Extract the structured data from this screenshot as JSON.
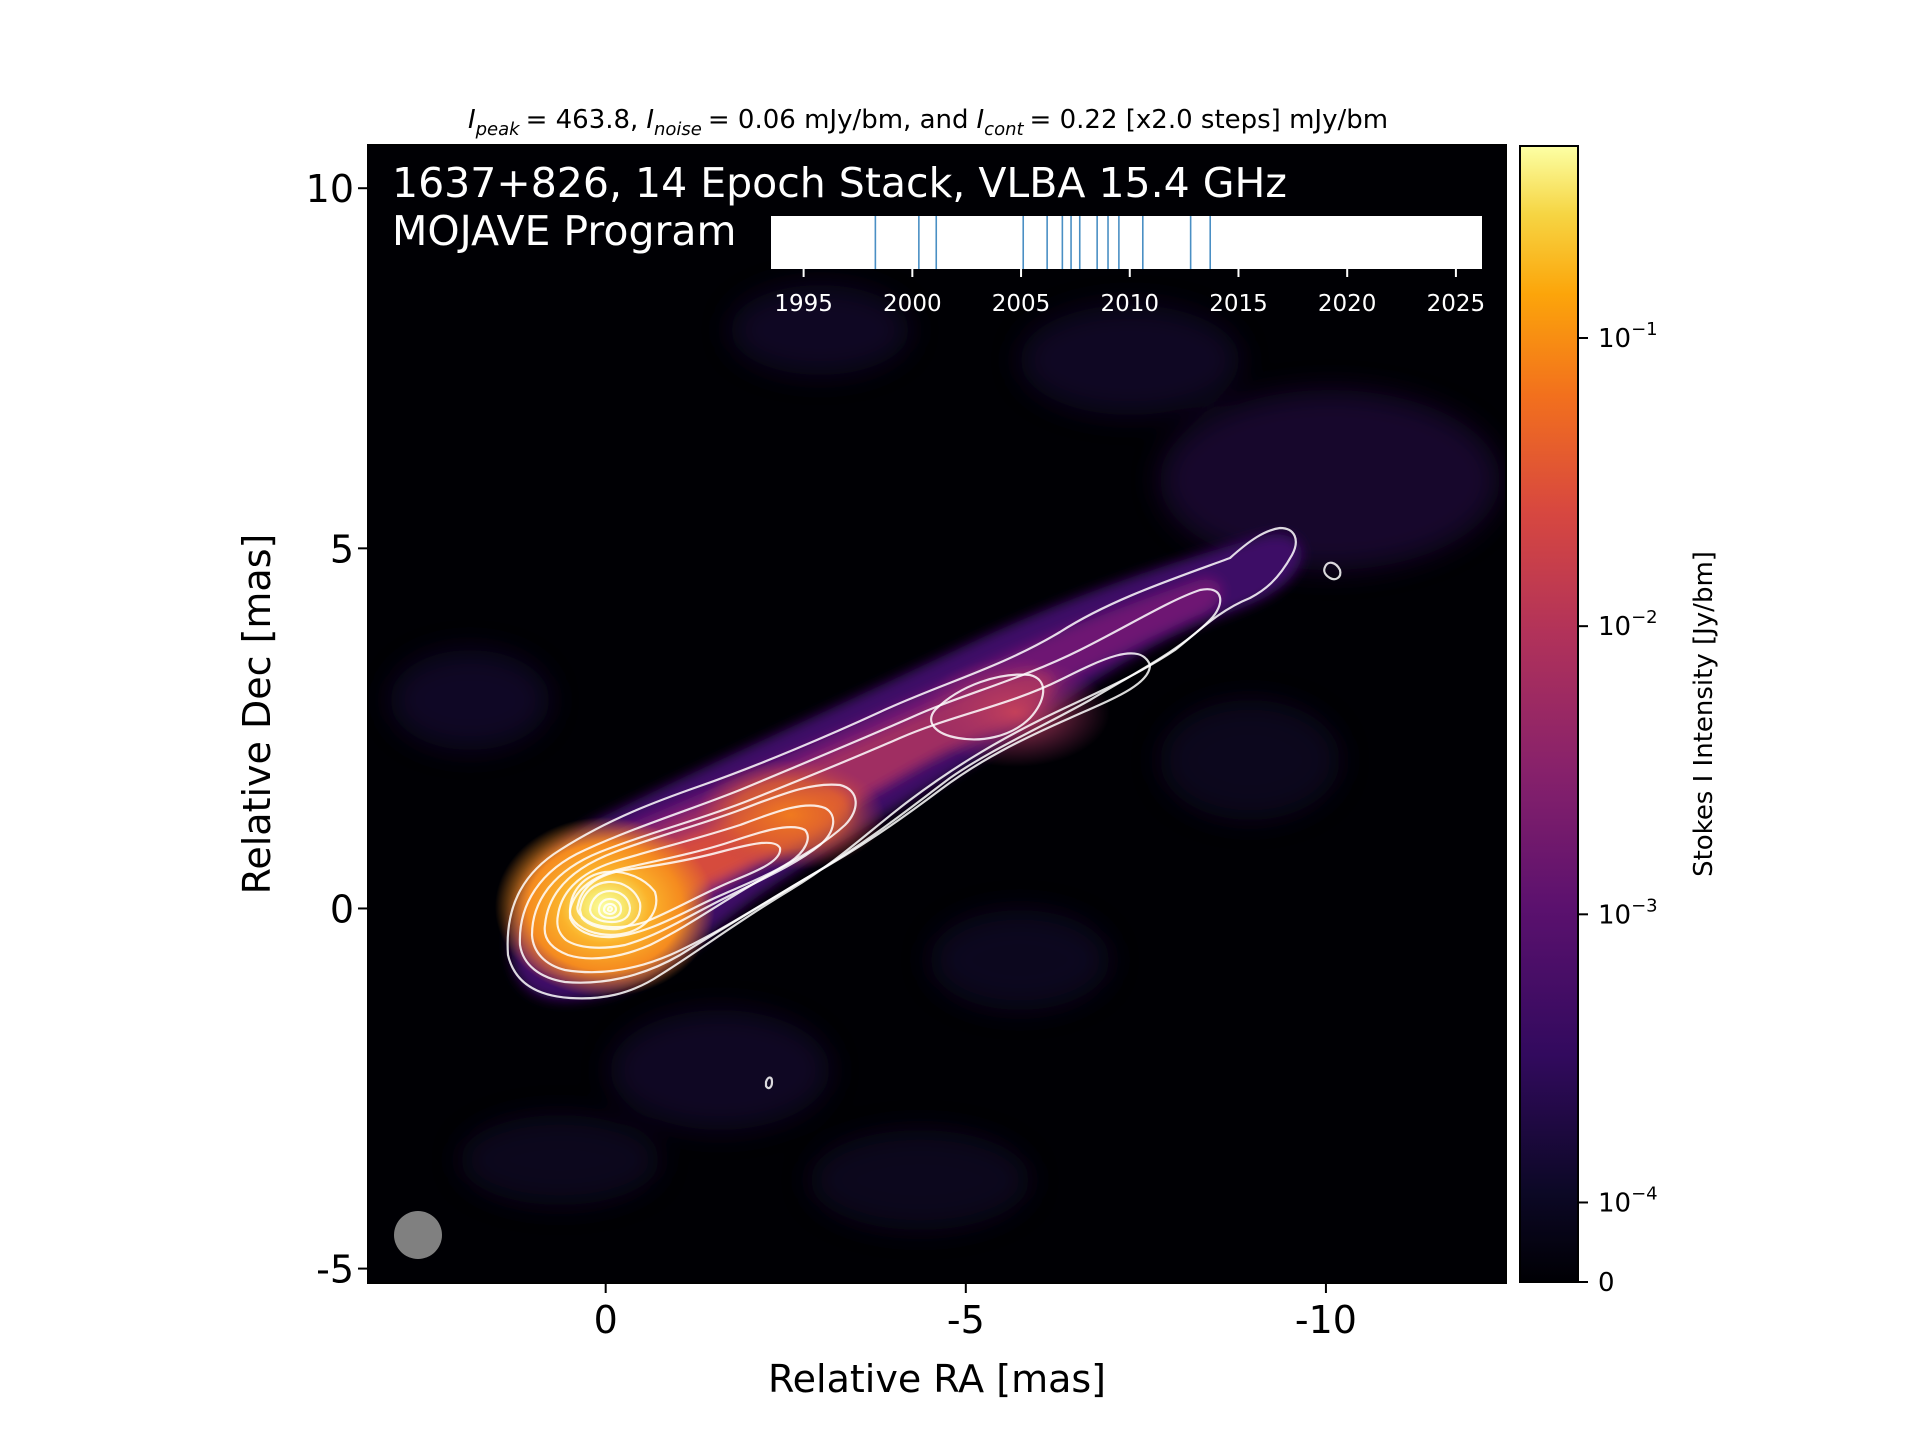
{
  "chart_data": {
    "type": "heatmap",
    "title": {
      "peak_label": "I",
      "peak_sub": "peak",
      "peak_value": "= 463.8,",
      "noise_label": "I",
      "noise_sub": "noise",
      "noise_value": "= 0.06 mJy/bm, and",
      "cont_label": "I",
      "cont_sub": "cont",
      "cont_value": "= 0.22 [x2.0 steps] mJy/bm"
    },
    "annotation_line1": "1637+826, 14 Epoch Stack, VLBA 15.4 GHz",
    "annotation_line2": "MOJAVE Program",
    "xlabel": "Relative RA [mas]",
    "ylabel": "Relative Dec [mas]",
    "xlim": [
      3.3,
      -12.5
    ],
    "ylim": [
      -5.2,
      10.6
    ],
    "x_ticks": [
      {
        "value": 0,
        "label": "0"
      },
      {
        "value": -5,
        "label": "-5"
      },
      {
        "value": -10,
        "label": "-10"
      }
    ],
    "y_ticks": [
      {
        "value": 10,
        "label": "10"
      },
      {
        "value": 5,
        "label": "5"
      },
      {
        "value": 0,
        "label": "0"
      },
      {
        "value": -5,
        "label": "-5"
      }
    ],
    "colormap": "inferno",
    "colorbar": {
      "label": "Stokes I Intensity [Jy/bm]",
      "scale": "log",
      "ticks": [
        {
          "value": 0.1,
          "base": "10",
          "exp": "−1"
        },
        {
          "value": 0.01,
          "base": "10",
          "exp": "−2"
        },
        {
          "value": 0.001,
          "base": "10",
          "exp": "−3"
        },
        {
          "value": 0.0001,
          "base": "10",
          "exp": "−4"
        },
        {
          "value": 0,
          "base": "0",
          "exp": ""
        }
      ]
    },
    "contours": {
      "lowest_mJy": 0.22,
      "step_factor": 2.0,
      "color": "#ffffff"
    },
    "peak_position": [
      0,
      0
    ],
    "beam_color": "#808080",
    "epoch_timeline": {
      "xlim": [
        1993.5,
        2026.2
      ],
      "ticks": [
        1995,
        2000,
        2005,
        2010,
        2015,
        2020,
        2025
      ],
      "epochs": [
        1998.3,
        2000.3,
        2001.1,
        2005.1,
        2006.2,
        2006.9,
        2007.3,
        2007.7,
        2008.5,
        2009.0,
        2009.5,
        2010.6,
        2012.8,
        2013.7
      ],
      "line_color": "#4a8fc4"
    }
  }
}
